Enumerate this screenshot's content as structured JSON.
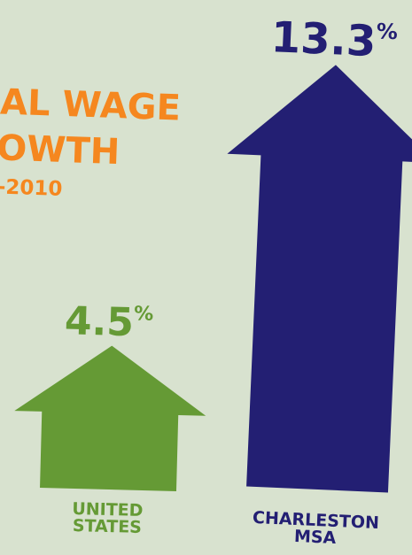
{
  "chart_data": {
    "type": "bar",
    "title": {
      "lines": [
        "AL WAGE",
        "OWTH"
      ],
      "subtitle": "-2010"
    },
    "xlabel": "",
    "ylabel": "",
    "categories": [
      {
        "lines": [
          "UNITED",
          "STATES"
        ]
      },
      {
        "lines": [
          "CHARLESTON",
          "MSA"
        ]
      }
    ],
    "values": [
      4.5,
      13.3
    ],
    "value_labels": [
      {
        "number": "4.5",
        "unit": "%"
      },
      {
        "number": "13.3",
        "unit": "%"
      }
    ],
    "ylim": [
      0,
      13.3
    ],
    "grid": false,
    "legend": "none",
    "colors": [
      "#659a35",
      "#231f73"
    ],
    "title_color": "#f5871f",
    "background": "#d8e2cf"
  }
}
